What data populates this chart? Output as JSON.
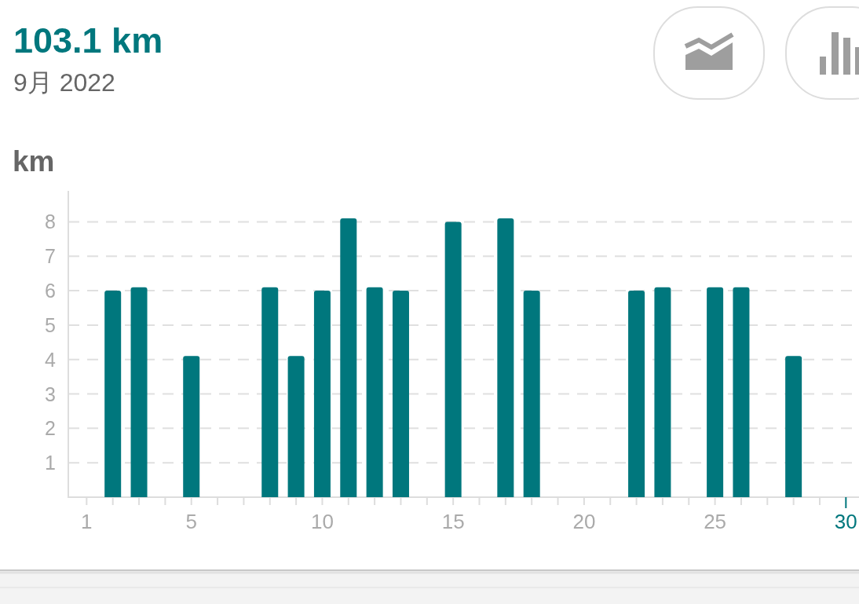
{
  "chart_data": {
    "type": "bar",
    "title": "103.1 km",
    "subtitle": "9月 2022",
    "ylabel": "km",
    "x": [
      2,
      3,
      5,
      8,
      9,
      10,
      11,
      12,
      13,
      15,
      17,
      18,
      22,
      23,
      25,
      26,
      28
    ],
    "values": [
      6.0,
      6.1,
      4.1,
      6.1,
      4.1,
      6.0,
      8.1,
      6.1,
      6.0,
      8.0,
      8.1,
      6.0,
      6.0,
      6.1,
      6.1,
      6.1,
      4.1
    ],
    "color": "#00777d",
    "xlim": [
      0.3,
      30.5
    ],
    "ylim": [
      0,
      8.9
    ],
    "xticks": [
      1,
      {
        "value": 2,
        "label": null
      },
      {
        "value": 3,
        "label": null
      },
      {
        "value": 4,
        "label": null
      },
      5,
      {
        "value": 6,
        "label": null
      },
      {
        "value": 7,
        "label": null
      },
      {
        "value": 8,
        "label": null
      },
      {
        "value": 9,
        "label": null
      },
      10,
      {
        "value": 11,
        "label": null
      },
      {
        "value": 12,
        "label": null
      },
      {
        "value": 13,
        "label": null
      },
      {
        "value": 14,
        "label": null
      },
      15,
      {
        "value": 16,
        "label": null
      },
      {
        "value": 17,
        "label": null
      },
      {
        "value": 18,
        "label": null
      },
      {
        "value": 19,
        "label": null
      },
      20,
      {
        "value": 21,
        "label": null
      },
      {
        "value": 22,
        "label": null
      },
      {
        "value": 23,
        "label": null
      },
      {
        "value": 24,
        "label": null
      },
      25,
      {
        "value": 26,
        "label": null
      },
      {
        "value": 27,
        "label": null
      },
      {
        "value": 28,
        "label": null
      },
      {
        "value": 29,
        "label": null
      },
      30
    ],
    "yticks": [
      1,
      2,
      3,
      4,
      5,
      6,
      7,
      8
    ],
    "grid": "y"
  }
}
